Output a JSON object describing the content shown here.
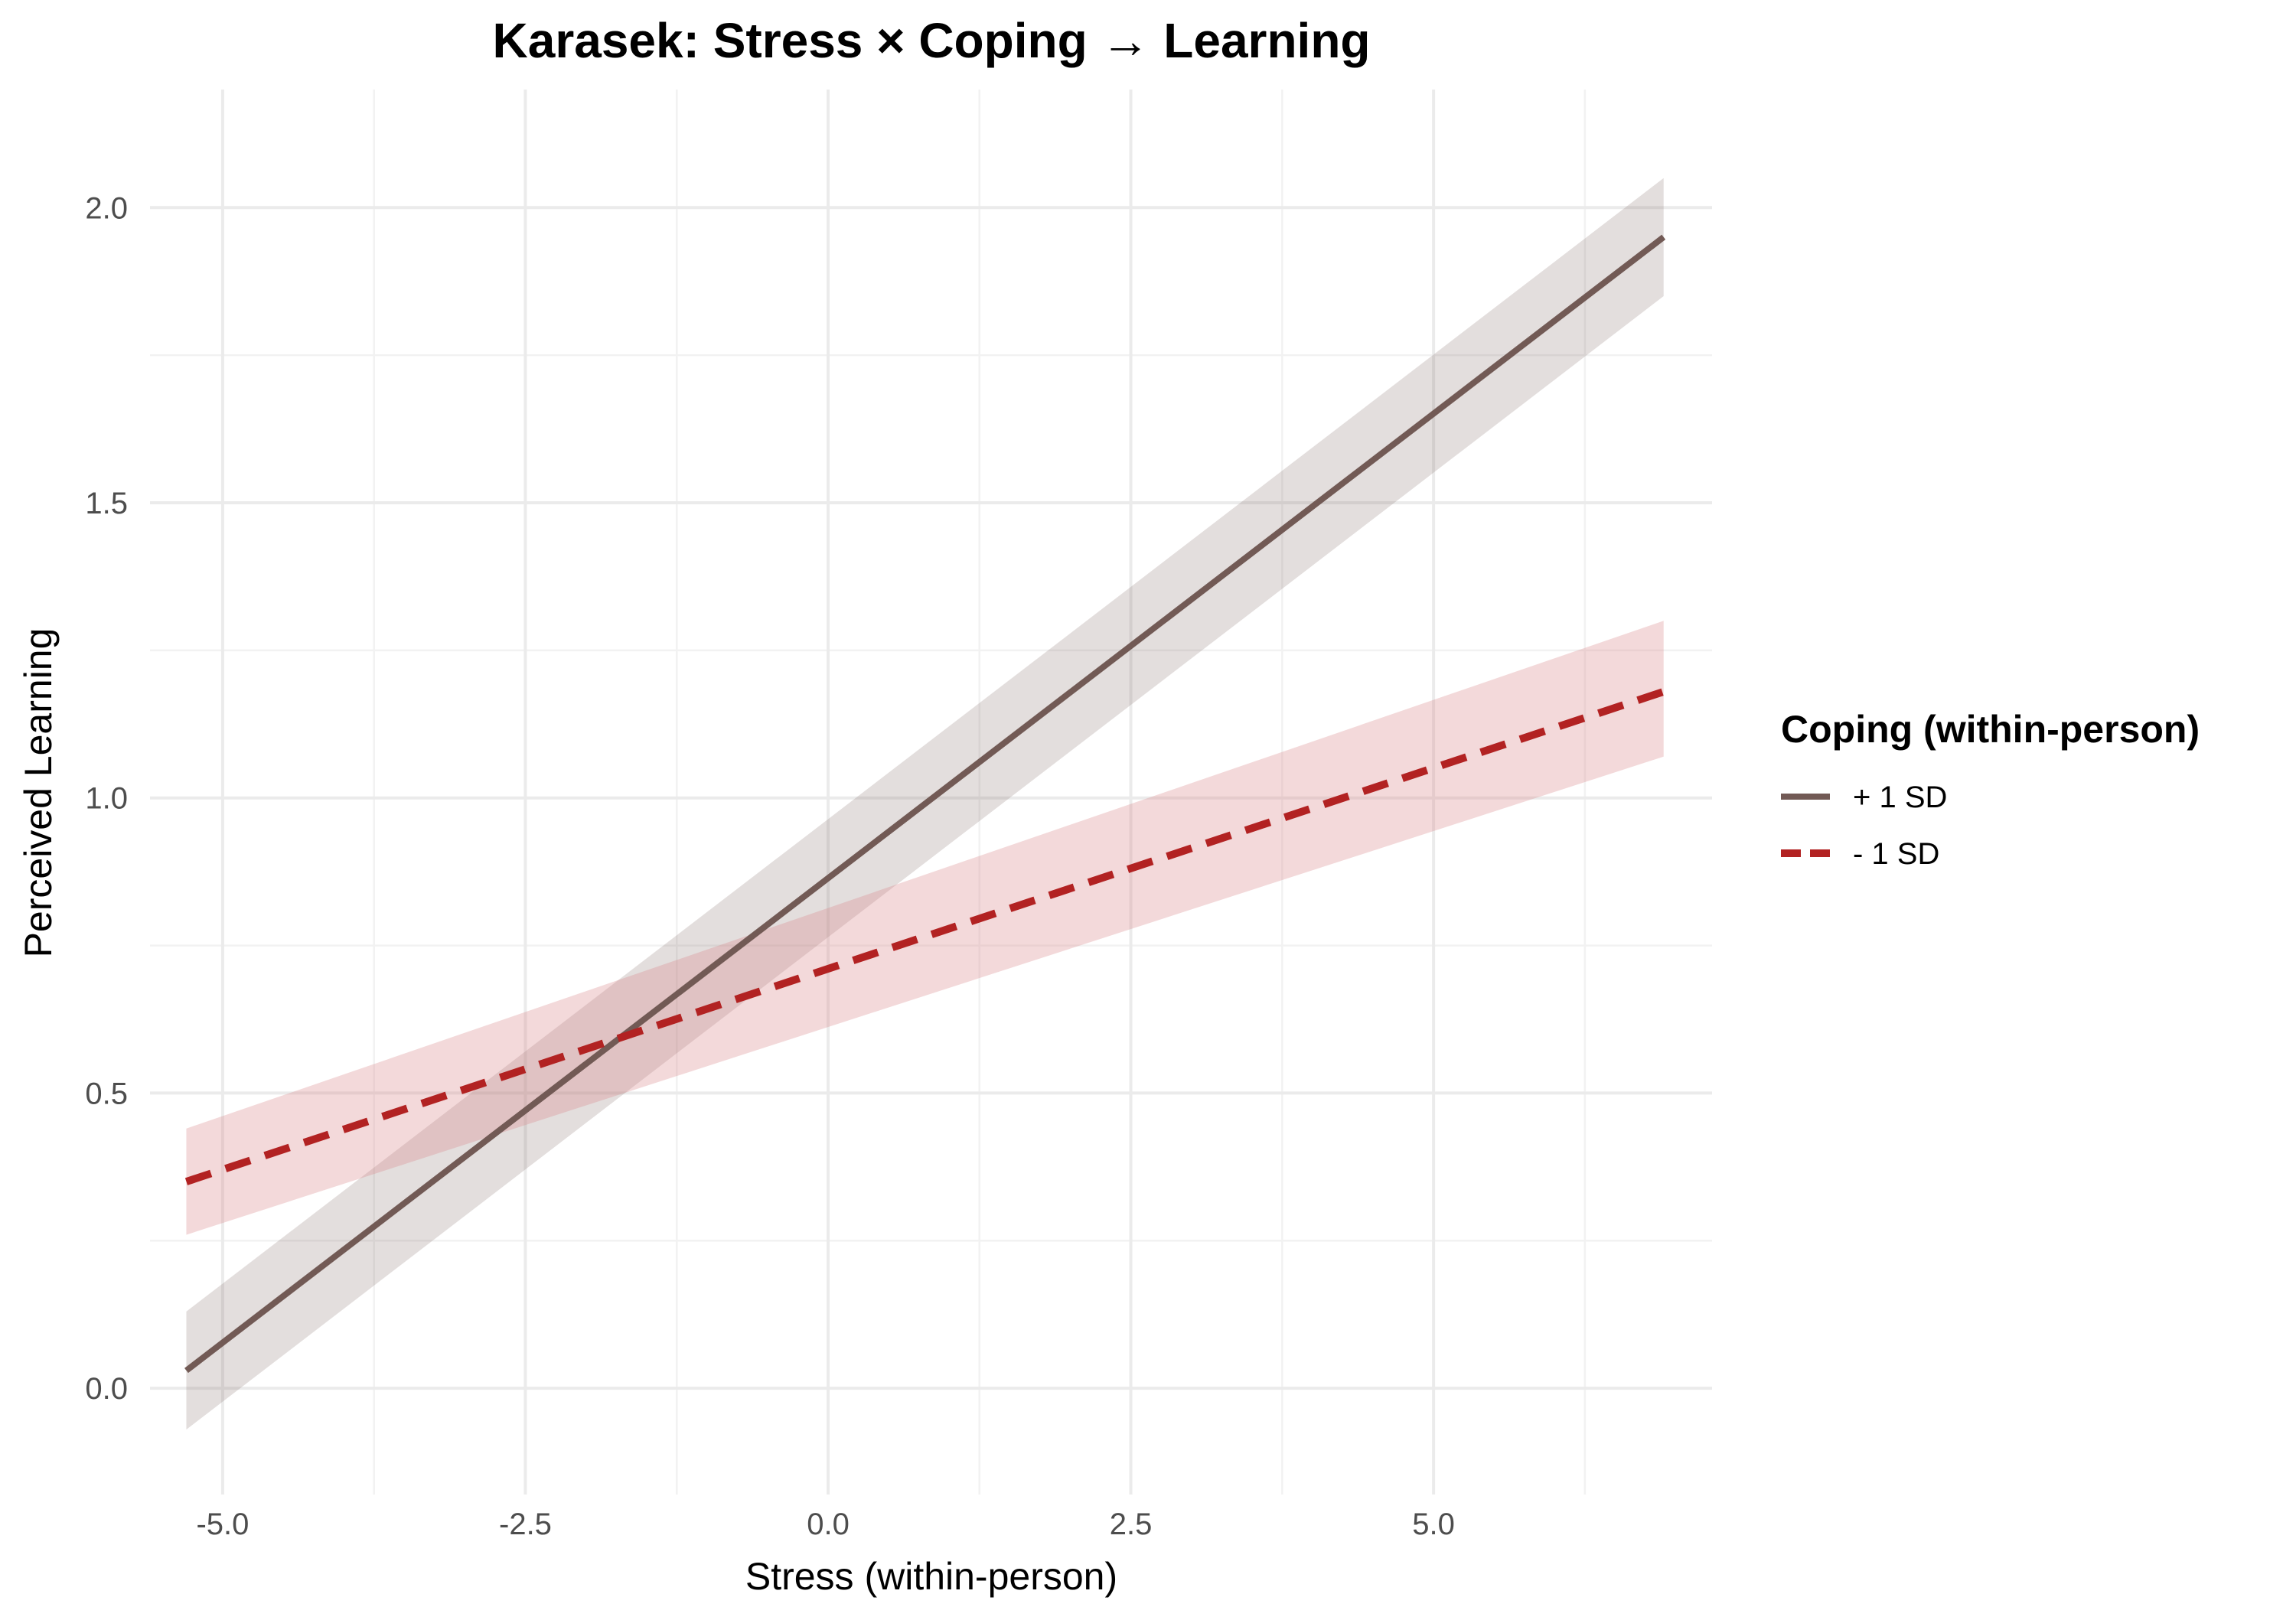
{
  "chart_data": {
    "type": "line",
    "title": "Karasek: Stress × Coping → Learning",
    "xlabel": "Stress (within-person)",
    "ylabel": "Perceived Learning",
    "xlim": [
      -5.6,
      7.3
    ],
    "ylim": [
      -0.18,
      2.2
    ],
    "x_ticks": [
      -5.0,
      -2.5,
      0.0,
      2.5,
      5.0
    ],
    "x_tick_labels": [
      "-5.0",
      "-2.5",
      "0.0",
      "2.5",
      "5.0"
    ],
    "y_ticks": [
      0.0,
      0.5,
      1.0,
      1.5,
      2.0
    ],
    "y_tick_labels": [
      "0.0",
      "0.5",
      "1.0",
      "1.5",
      "2.0"
    ],
    "grid": true,
    "legend": {
      "title": "Coping (within-person)",
      "position": "right"
    },
    "series": [
      {
        "name": "+ 1 SD",
        "color": "#725a55",
        "line_style": "solid",
        "x": [
          -5.3,
          6.9
        ],
        "y": [
          0.03,
          1.95
        ],
        "ci_lower": [
          -0.07,
          1.85
        ],
        "ci_upper": [
          0.13,
          2.05
        ],
        "ribbon_color": "#725a55"
      },
      {
        "name": "- 1 SD",
        "color": "#b22222",
        "line_style": "dashed",
        "x": [
          -5.3,
          6.9
        ],
        "y": [
          0.35,
          1.18
        ],
        "ci_lower": [
          0.26,
          1.07
        ],
        "ci_upper": [
          0.44,
          1.3
        ],
        "ribbon_color": "#d9888b"
      }
    ]
  }
}
